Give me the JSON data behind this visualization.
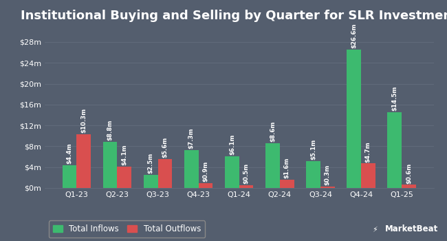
{
  "title": "Institutional Buying and Selling by Quarter for SLR Investment",
  "categories": [
    "Q1-23",
    "Q2-23",
    "Q3-23",
    "Q4-23",
    "Q1-24",
    "Q2-24",
    "Q3-24",
    "Q4-24",
    "Q1-25"
  ],
  "inflows": [
    4.4,
    8.8,
    2.5,
    7.3,
    6.1,
    8.6,
    5.1,
    26.6,
    14.5
  ],
  "outflows": [
    10.3,
    4.1,
    5.6,
    0.9,
    0.5,
    1.6,
    0.3,
    4.7,
    0.6
  ],
  "inflow_labels": [
    "$4.4m",
    "$8.8m",
    "$2.5m",
    "$7.3m",
    "$6.1m",
    "$8.6m",
    "$5.1m",
    "$26.6m",
    "$14.5m"
  ],
  "outflow_labels": [
    "$10.3m",
    "$4.1m",
    "$5.6m",
    "$0.9m",
    "$0.5m",
    "$1.6m",
    "$0.3m",
    "$4.7m",
    "$0.6m"
  ],
  "inflow_color": "#3dba6f",
  "outflow_color": "#d94f4f",
  "background_color": "#545e6e",
  "text_color": "#ffffff",
  "grid_color": "#636d7d",
  "yticks": [
    0,
    4,
    8,
    12,
    16,
    20,
    24,
    28
  ],
  "ytick_labels": [
    "$0m",
    "$4m",
    "$8m",
    "$12m",
    "$16m",
    "$20m",
    "$24m",
    "$28m"
  ],
  "ylim": [
    0,
    30.5
  ],
  "legend_inflow": "Total Inflows",
  "legend_outflow": "Total Outflows",
  "title_fontsize": 13,
  "label_fontsize": 6.2,
  "tick_fontsize": 8,
  "legend_fontsize": 8.5
}
